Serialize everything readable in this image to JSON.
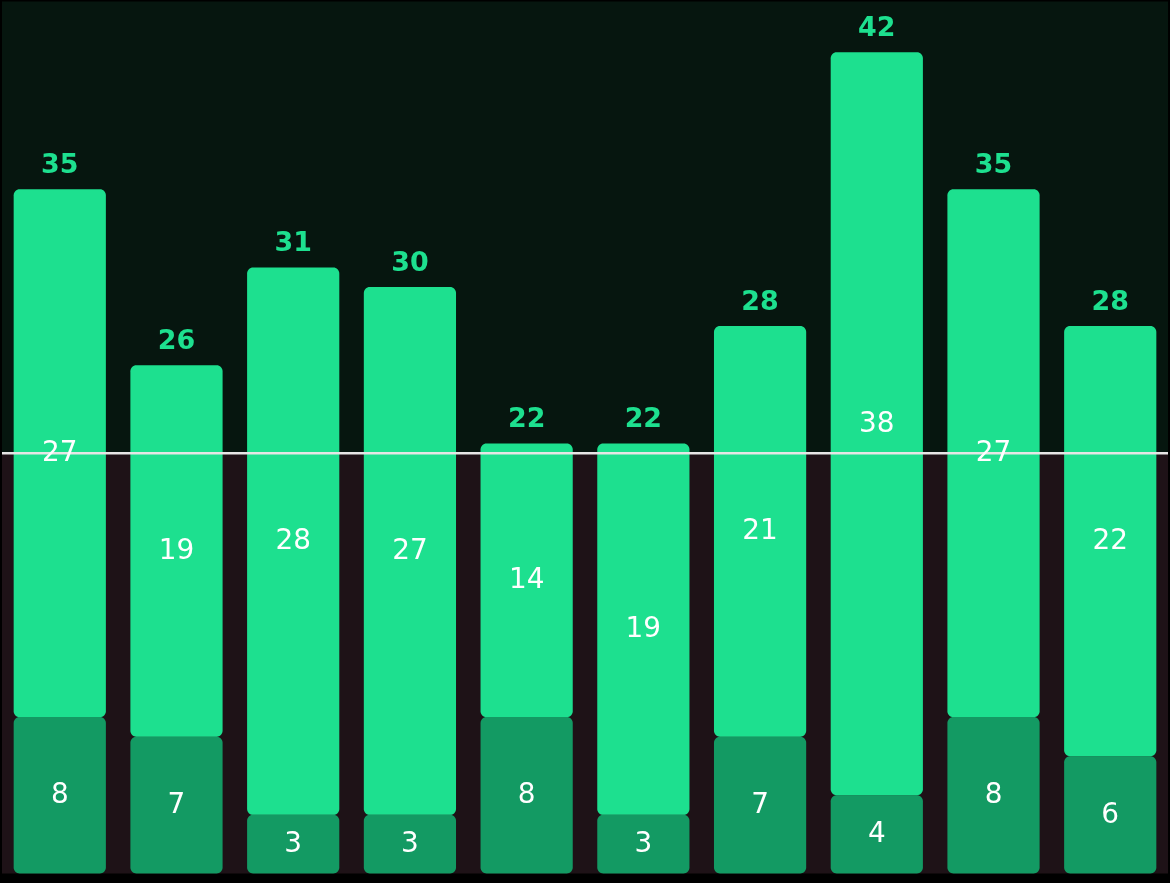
{
  "chart_data": {
    "type": "bar",
    "stacked": true,
    "categories": [
      null,
      null,
      null,
      null,
      null,
      null,
      null,
      null,
      null,
      null
    ],
    "series": [
      {
        "color": "#139a63",
        "values": [
          8,
          7,
          3,
          3,
          8,
          3,
          7,
          4,
          8,
          6
        ]
      },
      {
        "color": "#1de08f",
        "values": [
          27,
          19,
          28,
          27,
          14,
          19,
          21,
          38,
          27,
          22
        ]
      }
    ],
    "totals": [
      "35",
      "26",
      "31",
      "30",
      "22",
      "22",
      "28",
      "42",
      "35",
      "28"
    ],
    "data_labels": true,
    "ylim": [
      0,
      44.6
    ],
    "tick_labels": false,
    "ref_lines": [
      {
        "axis": "y",
        "value": 21.5,
        "label": null,
        "color": "#e6e6e6"
      }
    ],
    "bands": [
      {
        "axis": "y",
        "from": 0,
        "to": 21.5,
        "label": null,
        "color": "#1e1217"
      },
      {
        "axis": "y",
        "from": 21.5,
        "to": 44.6,
        "label": null,
        "color": "#06160f"
      }
    ]
  }
}
